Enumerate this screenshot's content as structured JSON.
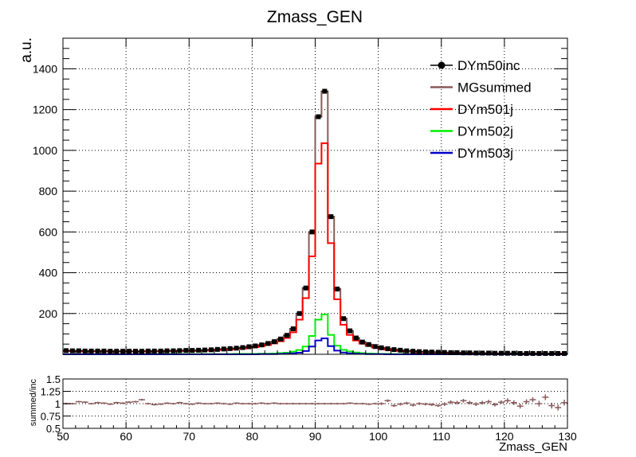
{
  "chart_data": [
    {
      "type": "line",
      "title": "Zmass_GEN",
      "ylabel": "a.u.",
      "xlabel": "",
      "xlim": [
        50,
        130
      ],
      "ylim": [
        0,
        1550
      ],
      "x_ticks": [
        50,
        60,
        70,
        80,
        90,
        100,
        110,
        120,
        130
      ],
      "y_ticks": [
        200,
        400,
        600,
        800,
        1000,
        1200,
        1400
      ],
      "grid": true,
      "legend_position": "top-right",
      "bin_edges": [
        50,
        51,
        52,
        53,
        54,
        55,
        56,
        57,
        58,
        59,
        60,
        61,
        62,
        63,
        64,
        65,
        66,
        67,
        68,
        69,
        70,
        71,
        72,
        73,
        74,
        75,
        76,
        77,
        78,
        79,
        80,
        81,
        82,
        83,
        84,
        85,
        86,
        87,
        88,
        89,
        90,
        91,
        92,
        93,
        94,
        95,
        96,
        97,
        98,
        99,
        100,
        101,
        102,
        103,
        104,
        105,
        106,
        107,
        108,
        109,
        110,
        111,
        112,
        113,
        114,
        115,
        116,
        117,
        118,
        119,
        120,
        121,
        122,
        123,
        124,
        125,
        126,
        127,
        128,
        129,
        130
      ],
      "series": [
        {
          "name": "DYm50inc",
          "style": "markers",
          "color": "#000000",
          "values": [
            18,
            17,
            17,
            16,
            16,
            16,
            16,
            15,
            15,
            15,
            15,
            15,
            15,
            16,
            16,
            16,
            17,
            17,
            18,
            19,
            19,
            20,
            21,
            22,
            24,
            26,
            28,
            30,
            33,
            37,
            41,
            46,
            53,
            62,
            75,
            93,
            125,
            200,
            325,
            600,
            1165,
            1290,
            675,
            320,
            175,
            115,
            80,
            60,
            48,
            38,
            32,
            27,
            23,
            20,
            17,
            15,
            13,
            12,
            11,
            10,
            9,
            8,
            8,
            7,
            7,
            6,
            6,
            6,
            5,
            5,
            5,
            5,
            4,
            4,
            4,
            4,
            4,
            4,
            4,
            4
          ]
        },
        {
          "name": "MGsummed",
          "style": "step",
          "color": "#8a5a5a",
          "values": [
            18,
            17,
            17,
            16,
            16,
            16,
            16,
            15,
            15,
            15,
            15,
            15,
            15,
            16,
            16,
            16,
            17,
            17,
            18,
            19,
            19,
            20,
            21,
            22,
            24,
            26,
            28,
            30,
            33,
            37,
            41,
            46,
            53,
            62,
            75,
            93,
            125,
            200,
            325,
            600,
            1165,
            1290,
            675,
            320,
            175,
            115,
            80,
            60,
            48,
            38,
            32,
            27,
            23,
            20,
            17,
            15,
            13,
            12,
            11,
            10,
            9,
            8,
            8,
            7,
            7,
            6,
            6,
            6,
            5,
            5,
            5,
            5,
            4,
            4,
            4,
            4,
            4,
            4,
            4,
            4
          ]
        },
        {
          "name": "DYm501j",
          "style": "step",
          "color": "#ff0000",
          "values": [
            16,
            15,
            15,
            14,
            14,
            14,
            14,
            13,
            13,
            13,
            13,
            13,
            13,
            14,
            14,
            14,
            15,
            15,
            16,
            16,
            16,
            17,
            18,
            19,
            21,
            22,
            24,
            26,
            28,
            32,
            35,
            40,
            46,
            53,
            64,
            80,
            108,
            170,
            275,
            480,
            935,
            1035,
            545,
            270,
            145,
            95,
            68,
            52,
            41,
            33,
            27,
            23,
            20,
            17,
            15,
            13,
            11,
            10,
            9,
            8,
            7,
            7,
            6,
            6,
            5,
            5,
            5,
            5,
            4,
            4,
            4,
            4,
            3,
            3,
            3,
            3,
            3,
            3,
            3,
            3
          ]
        },
        {
          "name": "DYm502j",
          "style": "step",
          "color": "#00ee00",
          "values": [
            0,
            0,
            0,
            0,
            0,
            0,
            0,
            0,
            0,
            0,
            0,
            0,
            0,
            1,
            1,
            1,
            1,
            1,
            1,
            1,
            1,
            1,
            1,
            1,
            1,
            1,
            1,
            2,
            2,
            2,
            2,
            3,
            3,
            4,
            6,
            8,
            13,
            21,
            38,
            90,
            170,
            195,
            95,
            42,
            22,
            14,
            9,
            6,
            4,
            3,
            2,
            2,
            1,
            1,
            1,
            1,
            1,
            1,
            1,
            1,
            0,
            0,
            0,
            0,
            0,
            0,
            0,
            0,
            0,
            0,
            0,
            0,
            0,
            0,
            0,
            0,
            0,
            0,
            0,
            0
          ]
        },
        {
          "name": "DYm503j",
          "style": "step",
          "color": "#0000cc",
          "values": [
            0,
            0,
            0,
            0,
            0,
            0,
            0,
            0,
            0,
            0,
            0,
            0,
            0,
            0,
            0,
            0,
            0,
            0,
            0,
            0,
            0,
            0,
            0,
            0,
            0,
            0,
            0,
            0,
            0,
            0,
            0,
            1,
            1,
            1,
            2,
            3,
            5,
            8,
            16,
            38,
            68,
            78,
            40,
            18,
            9,
            5,
            3,
            2,
            1,
            1,
            1,
            0,
            0,
            0,
            0,
            0,
            0,
            0,
            0,
            0,
            0,
            0,
            0,
            0,
            0,
            0,
            0,
            0,
            0,
            0,
            0,
            0,
            0,
            0,
            0,
            0,
            0,
            0,
            0,
            0
          ]
        }
      ]
    },
    {
      "type": "scatter",
      "title": "",
      "ylabel": "summed/inc",
      "xlabel": "Zmass_GEN",
      "xlim": [
        50,
        130
      ],
      "ylim": [
        0.5,
        1.5
      ],
      "x_ticks": [
        50,
        60,
        70,
        80,
        90,
        100,
        110,
        120,
        130
      ],
      "y_ticks": [
        0.5,
        0.75,
        1,
        1.25,
        1.5
      ],
      "y_tick_labels": [
        "0.5",
        "0.75",
        "1",
        "1.25",
        "1.5"
      ],
      "grid": true,
      "color": "#8a5a5a",
      "x": [
        50.5,
        51.5,
        52.5,
        53.5,
        54.5,
        55.5,
        56.5,
        57.5,
        58.5,
        59.5,
        60.5,
        61.5,
        62.5,
        63.5,
        64.5,
        65.5,
        66.5,
        67.5,
        68.5,
        69.5,
        70.5,
        71.5,
        72.5,
        73.5,
        74.5,
        75.5,
        76.5,
        77.5,
        78.5,
        79.5,
        80.5,
        81.5,
        82.5,
        83.5,
        84.5,
        85.5,
        86.5,
        87.5,
        88.5,
        89.5,
        90.5,
        91.5,
        92.5,
        93.5,
        94.5,
        95.5,
        96.5,
        97.5,
        98.5,
        99.5,
        100.5,
        101.5,
        102.5,
        103.5,
        104.5,
        105.5,
        106.5,
        107.5,
        108.5,
        109.5,
        110.5,
        111.5,
        112.5,
        113.5,
        114.5,
        115.5,
        116.5,
        117.5,
        118.5,
        119.5,
        120.5,
        121.5,
        122.5,
        123.5,
        124.5,
        125.5,
        126.5,
        127.5,
        128.5,
        129.5
      ],
      "values": [
        1.0,
        1.0,
        1.04,
        1.03,
        1.0,
        1.02,
        1.01,
        0.99,
        1.02,
        1.01,
        1.03,
        1.04,
        1.08,
        1.0,
        0.98,
        0.99,
        1.01,
        1.0,
        1.02,
        1.0,
        0.99,
        1.01,
        1.0,
        1.0,
        1.01,
        1.0,
        0.99,
        1.01,
        1.0,
        1.0,
        1.0,
        1.01,
        1.0,
        1.01,
        1.0,
        1.0,
        1.0,
        1.0,
        1.0,
        1.0,
        1.0,
        1.0,
        1.0,
        1.0,
        1.0,
        1.01,
        1.0,
        1.0,
        0.99,
        1.0,
        1.0,
        1.06,
        0.96,
        0.99,
        1.01,
        0.97,
        1.0,
        0.99,
        0.98,
        0.96,
        0.99,
        1.03,
        1.02,
        1.06,
        1.02,
        0.99,
        1.02,
        1.04,
        0.98,
        1.03,
        1.06,
        1.02,
        0.95,
        1.04,
        1.08,
        1.0,
        1.13,
        0.96,
        0.92,
        1.02
      ],
      "errors": [
        0.01,
        0.01,
        0.01,
        0.01,
        0.01,
        0.01,
        0.01,
        0.01,
        0.01,
        0.01,
        0.01,
        0.01,
        0.01,
        0.01,
        0.01,
        0.01,
        0.01,
        0.01,
        0.01,
        0.01,
        0.01,
        0.01,
        0.01,
        0.01,
        0.01,
        0.01,
        0.01,
        0.01,
        0.01,
        0.01,
        0.01,
        0.01,
        0.01,
        0.01,
        0.01,
        0.01,
        0.01,
        0.01,
        0.01,
        0.01,
        0.01,
        0.01,
        0.01,
        0.01,
        0.01,
        0.01,
        0.01,
        0.01,
        0.01,
        0.01,
        0.02,
        0.02,
        0.02,
        0.02,
        0.02,
        0.02,
        0.02,
        0.02,
        0.02,
        0.02,
        0.03,
        0.03,
        0.03,
        0.03,
        0.03,
        0.03,
        0.03,
        0.03,
        0.03,
        0.03,
        0.04,
        0.04,
        0.04,
        0.04,
        0.04,
        0.05,
        0.05,
        0.05,
        0.05,
        0.05
      ]
    }
  ]
}
